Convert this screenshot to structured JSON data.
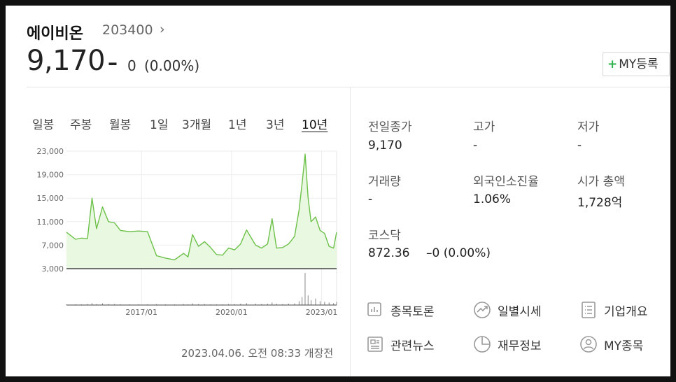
{
  "stock": {
    "name": "에이비온",
    "code": "203400",
    "code_arrow": "›",
    "price": "9,170",
    "change_symbol": "–",
    "change_value": "0",
    "change_pct": "(0.00%)",
    "my_register_plus": "+",
    "my_register_label": "MY등록"
  },
  "tabs": [
    "일봉",
    "주봉",
    "월봉",
    "1일",
    "3개월",
    "1년",
    "3년",
    "10년"
  ],
  "active_tab": "10년",
  "timestamp": "2023.04.06. 오전 08:33 개장전",
  "stats": {
    "prev_close_label": "전일종가",
    "prev_close_value": "9,170",
    "high_label": "고가",
    "high_value": "-",
    "low_label": "저가",
    "low_value": "-",
    "volume_label": "거래량",
    "volume_value": "-",
    "foreign_label": "외국인소진율",
    "foreign_value": "1.06%",
    "mktcap_label": "시가 총액",
    "mktcap_value": "1,728억",
    "index_label": "코스닥",
    "index_value": "872.36",
    "index_change": "–0 (0.00%)"
  },
  "links": [
    {
      "label": "종목토론",
      "icon": "discussion-icon"
    },
    {
      "label": "일별시세",
      "icon": "trend-icon"
    },
    {
      "label": "기업개요",
      "icon": "list-icon"
    },
    {
      "label": "관련뉴스",
      "icon": "news-icon"
    },
    {
      "label": "재무정보",
      "icon": "pie-icon"
    },
    {
      "label": "MY종목",
      "icon": "person-icon"
    }
  ],
  "colors": {
    "line": "#6cc04a",
    "fill": "#e9f8e0",
    "accent": "#2cb24b"
  },
  "chart_data": {
    "type": "area",
    "y_ticks": [
      "23,000",
      "19,000",
      "15,000",
      "11,000",
      "7,000",
      "3,000"
    ],
    "ylim": [
      3000,
      23000
    ],
    "x_ticks": [
      "2017/01",
      "2020/01",
      "2023/01"
    ],
    "x": [
      2014.5,
      2014.8,
      2015.0,
      2015.2,
      2015.35,
      2015.5,
      2015.7,
      2015.9,
      2016.1,
      2016.3,
      2016.6,
      2016.9,
      2017.2,
      2017.5,
      2017.8,
      2018.1,
      2018.4,
      2018.55,
      2018.7,
      2018.9,
      2019.1,
      2019.3,
      2019.5,
      2019.7,
      2019.9,
      2020.1,
      2020.3,
      2020.5,
      2020.8,
      2021.0,
      2021.2,
      2021.35,
      2021.5,
      2021.7,
      2021.9,
      2022.1,
      2022.25,
      2022.35,
      2022.45,
      2022.55,
      2022.65,
      2022.8,
      2022.95,
      2023.1,
      2023.25,
      2023.4,
      2023.5
    ],
    "values": [
      9200,
      8000,
      8200,
      8100,
      15000,
      9800,
      13500,
      11000,
      10800,
      9500,
      9300,
      9400,
      9300,
      5200,
      4800,
      4500,
      5600,
      5000,
      8800,
      6800,
      7600,
      6600,
      5400,
      5300,
      6500,
      6200,
      7200,
      9600,
      7000,
      6500,
      7200,
      11500,
      6500,
      6600,
      7200,
      8500,
      13000,
      17500,
      22500,
      15000,
      11000,
      11800,
      9500,
      9000,
      6800,
      6500,
      9200
    ],
    "volume": [
      0.02,
      0.02,
      0.02,
      0.03,
      0.06,
      0.03,
      0.05,
      0.03,
      0.03,
      0.02,
      0.02,
      0.02,
      0.02,
      0.03,
      0.02,
      0.02,
      0.03,
      0.02,
      0.05,
      0.03,
      0.03,
      0.02,
      0.02,
      0.02,
      0.03,
      0.03,
      0.04,
      0.06,
      0.04,
      0.03,
      0.04,
      0.08,
      0.04,
      0.03,
      0.04,
      0.05,
      0.12,
      0.25,
      1.0,
      0.3,
      0.15,
      0.2,
      0.12,
      0.1,
      0.08,
      0.06,
      0.1
    ]
  }
}
